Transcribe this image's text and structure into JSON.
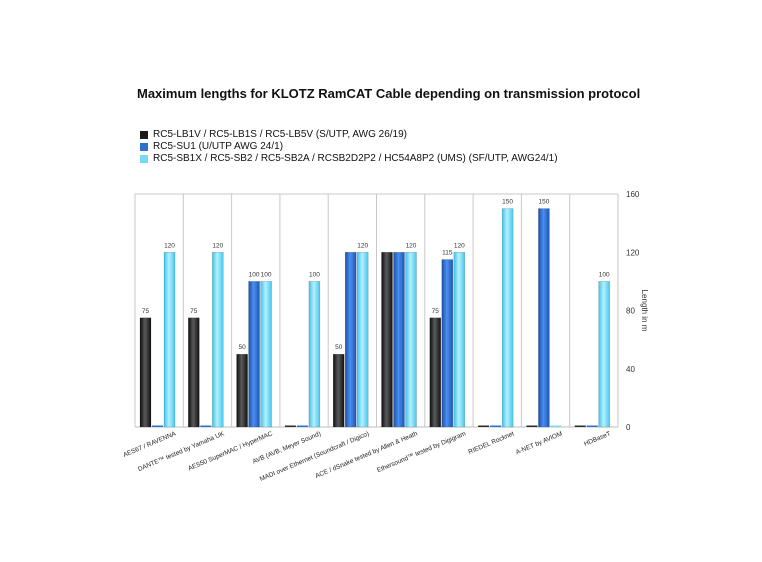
{
  "title": "Maximum lengths for KLOTZ RamCAT Cable depending on transmission protocol",
  "chart_data": {
    "type": "bar",
    "categories": [
      "AES67 / RAVENNA",
      "DANTE™ tested by Yamaha UK",
      "AES50 SuperMAC / HyperMAC",
      "AVB (AVB, Meyer Sound)",
      "MADI over Ethernet (Soundcraft / Digico)",
      "ACE / dSnake tested by Allen & Heath",
      "Ethersound™ tested by Digigram",
      "RIEDEL Rocknet",
      "A-NET by AVIOM",
      "HDBaseT"
    ],
    "series": [
      {
        "name": "RC5-LB1V / RC5-LB1S / RC5-LB5V (S/UTP, AWG 26/19)",
        "color": "#2b2b2b",
        "values": [
          75,
          75,
          50,
          0,
          50,
          120,
          75,
          0,
          0,
          0
        ],
        "labels": [
          "75",
          "75",
          "50",
          "",
          "50",
          "",
          "75",
          "",
          "",
          ""
        ]
      },
      {
        "name": "RC5-SU1 (U/UTP AWG 24/1)",
        "color": "#2f6fd0",
        "values": [
          0,
          0,
          100,
          0,
          120,
          120,
          115,
          0,
          150,
          0
        ],
        "labels": [
          "",
          "",
          "100",
          "",
          "",
          "",
          "115",
          "",
          "150",
          ""
        ]
      },
      {
        "name": "RC5-SB1X / RC5-SB2 / RC5-SB2A / RCSB2D2P2 / HC54A8P2 (UMS) (SF/UTP, AWG24/1)",
        "color": "#76dcf6",
        "values": [
          120,
          120,
          100,
          100,
          120,
          120,
          120,
          150,
          0,
          100
        ],
        "labels": [
          "120",
          "120",
          "100",
          "100",
          "120",
          "120",
          "120",
          "150",
          "",
          "100"
        ]
      }
    ],
    "ylabel": "Length in m",
    "ylim": [
      0,
      160
    ],
    "yticks": [
      "0",
      "40",
      "80",
      "120",
      "160"
    ],
    "axis_side": "right",
    "grid": "vertical separators",
    "legend_position": "top-left"
  }
}
